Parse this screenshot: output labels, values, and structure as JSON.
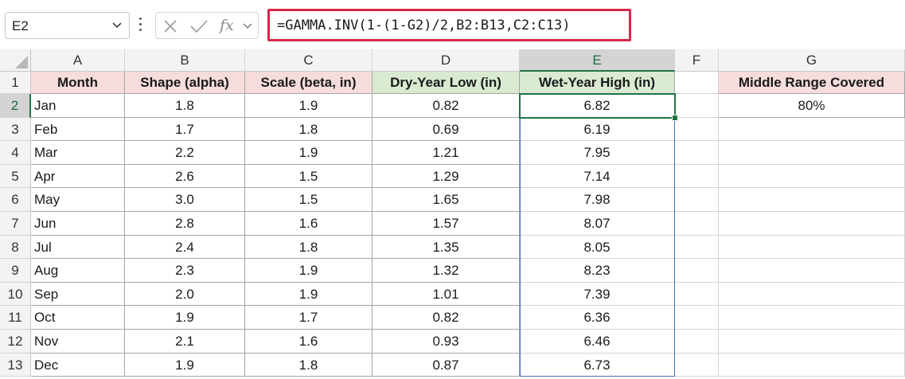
{
  "namebox": {
    "value": "E2"
  },
  "formula": {
    "text": "=GAMMA.INV(1-(1-G2)/2,B2:B13,C2:C13)",
    "fx_label": "fx"
  },
  "columns": [
    "A",
    "B",
    "C",
    "D",
    "E",
    "F",
    "G"
  ],
  "rows": [
    "1",
    "2",
    "3",
    "4",
    "5",
    "6",
    "7",
    "8",
    "9",
    "10",
    "11",
    "12",
    "13"
  ],
  "headers": {
    "month": "Month",
    "shape": "Shape (alpha)",
    "scale": "Scale (beta, in)",
    "dry": "Dry-Year Low (in)",
    "wet": "Wet-Year High (in)",
    "middle": "Middle Range Covered"
  },
  "middle_value": "80%",
  "data": [
    [
      "Jan",
      "1.8",
      "1.9",
      "0.82",
      "6.82"
    ],
    [
      "Feb",
      "1.7",
      "1.8",
      "0.69",
      "6.19"
    ],
    [
      "Mar",
      "2.2",
      "1.9",
      "1.21",
      "7.95"
    ],
    [
      "Apr",
      "2.6",
      "1.5",
      "1.29",
      "7.14"
    ],
    [
      "May",
      "3.0",
      "1.5",
      "1.65",
      "7.98"
    ],
    [
      "Jun",
      "2.8",
      "1.6",
      "1.57",
      "8.07"
    ],
    [
      "Jul",
      "2.4",
      "1.8",
      "1.35",
      "8.05"
    ],
    [
      "Aug",
      "2.3",
      "1.9",
      "1.32",
      "8.23"
    ],
    [
      "Sep",
      "2.0",
      "1.9",
      "1.01",
      "7.39"
    ],
    [
      "Oct",
      "1.9",
      "1.7",
      "0.82",
      "6.36"
    ],
    [
      "Nov",
      "2.1",
      "1.6",
      "0.93",
      "6.46"
    ],
    [
      "Dec",
      "1.9",
      "1.8",
      "0.87",
      "6.73"
    ]
  ],
  "colors": {
    "header_red": "#f6dcdc",
    "header_green": "#d9ead1",
    "selection": "#217346",
    "formula_outline": "#d6284a"
  },
  "icons": {
    "cancel": "x-icon",
    "enter": "check-icon",
    "function": "fx-icon"
  }
}
